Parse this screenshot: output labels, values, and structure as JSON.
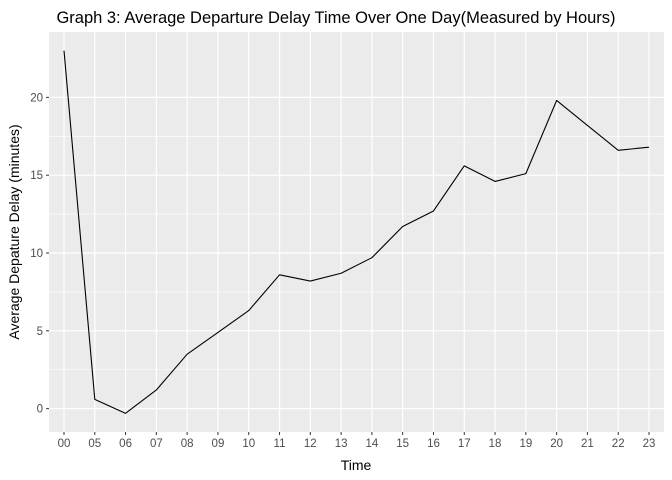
{
  "chart_data": {
    "type": "line",
    "title": "Graph 3: Average Departure Delay Time Over One Day(Measured by Hours)",
    "xlabel": "Time",
    "ylabel": "Average Depature Delay (minutes)",
    "categories": [
      "00",
      "05",
      "06",
      "07",
      "08",
      "09",
      "10",
      "11",
      "12",
      "13",
      "14",
      "15",
      "16",
      "17",
      "18",
      "19",
      "20",
      "21",
      "22",
      "23"
    ],
    "values": [
      23.0,
      0.6,
      -0.3,
      1.2,
      3.5,
      4.9,
      6.3,
      8.6,
      8.2,
      8.7,
      9.7,
      11.7,
      12.7,
      15.6,
      14.6,
      15.1,
      19.8,
      18.2,
      16.6,
      16.8
    ],
    "yticks": [
      0,
      5,
      10,
      15,
      20
    ],
    "ylim": [
      -1.5,
      24.2
    ],
    "grid": true,
    "legend": "none",
    "colors": {
      "panel": "#ebebeb",
      "gridline": "#ffffff",
      "line": "#000000",
      "tick": "#333333"
    }
  }
}
